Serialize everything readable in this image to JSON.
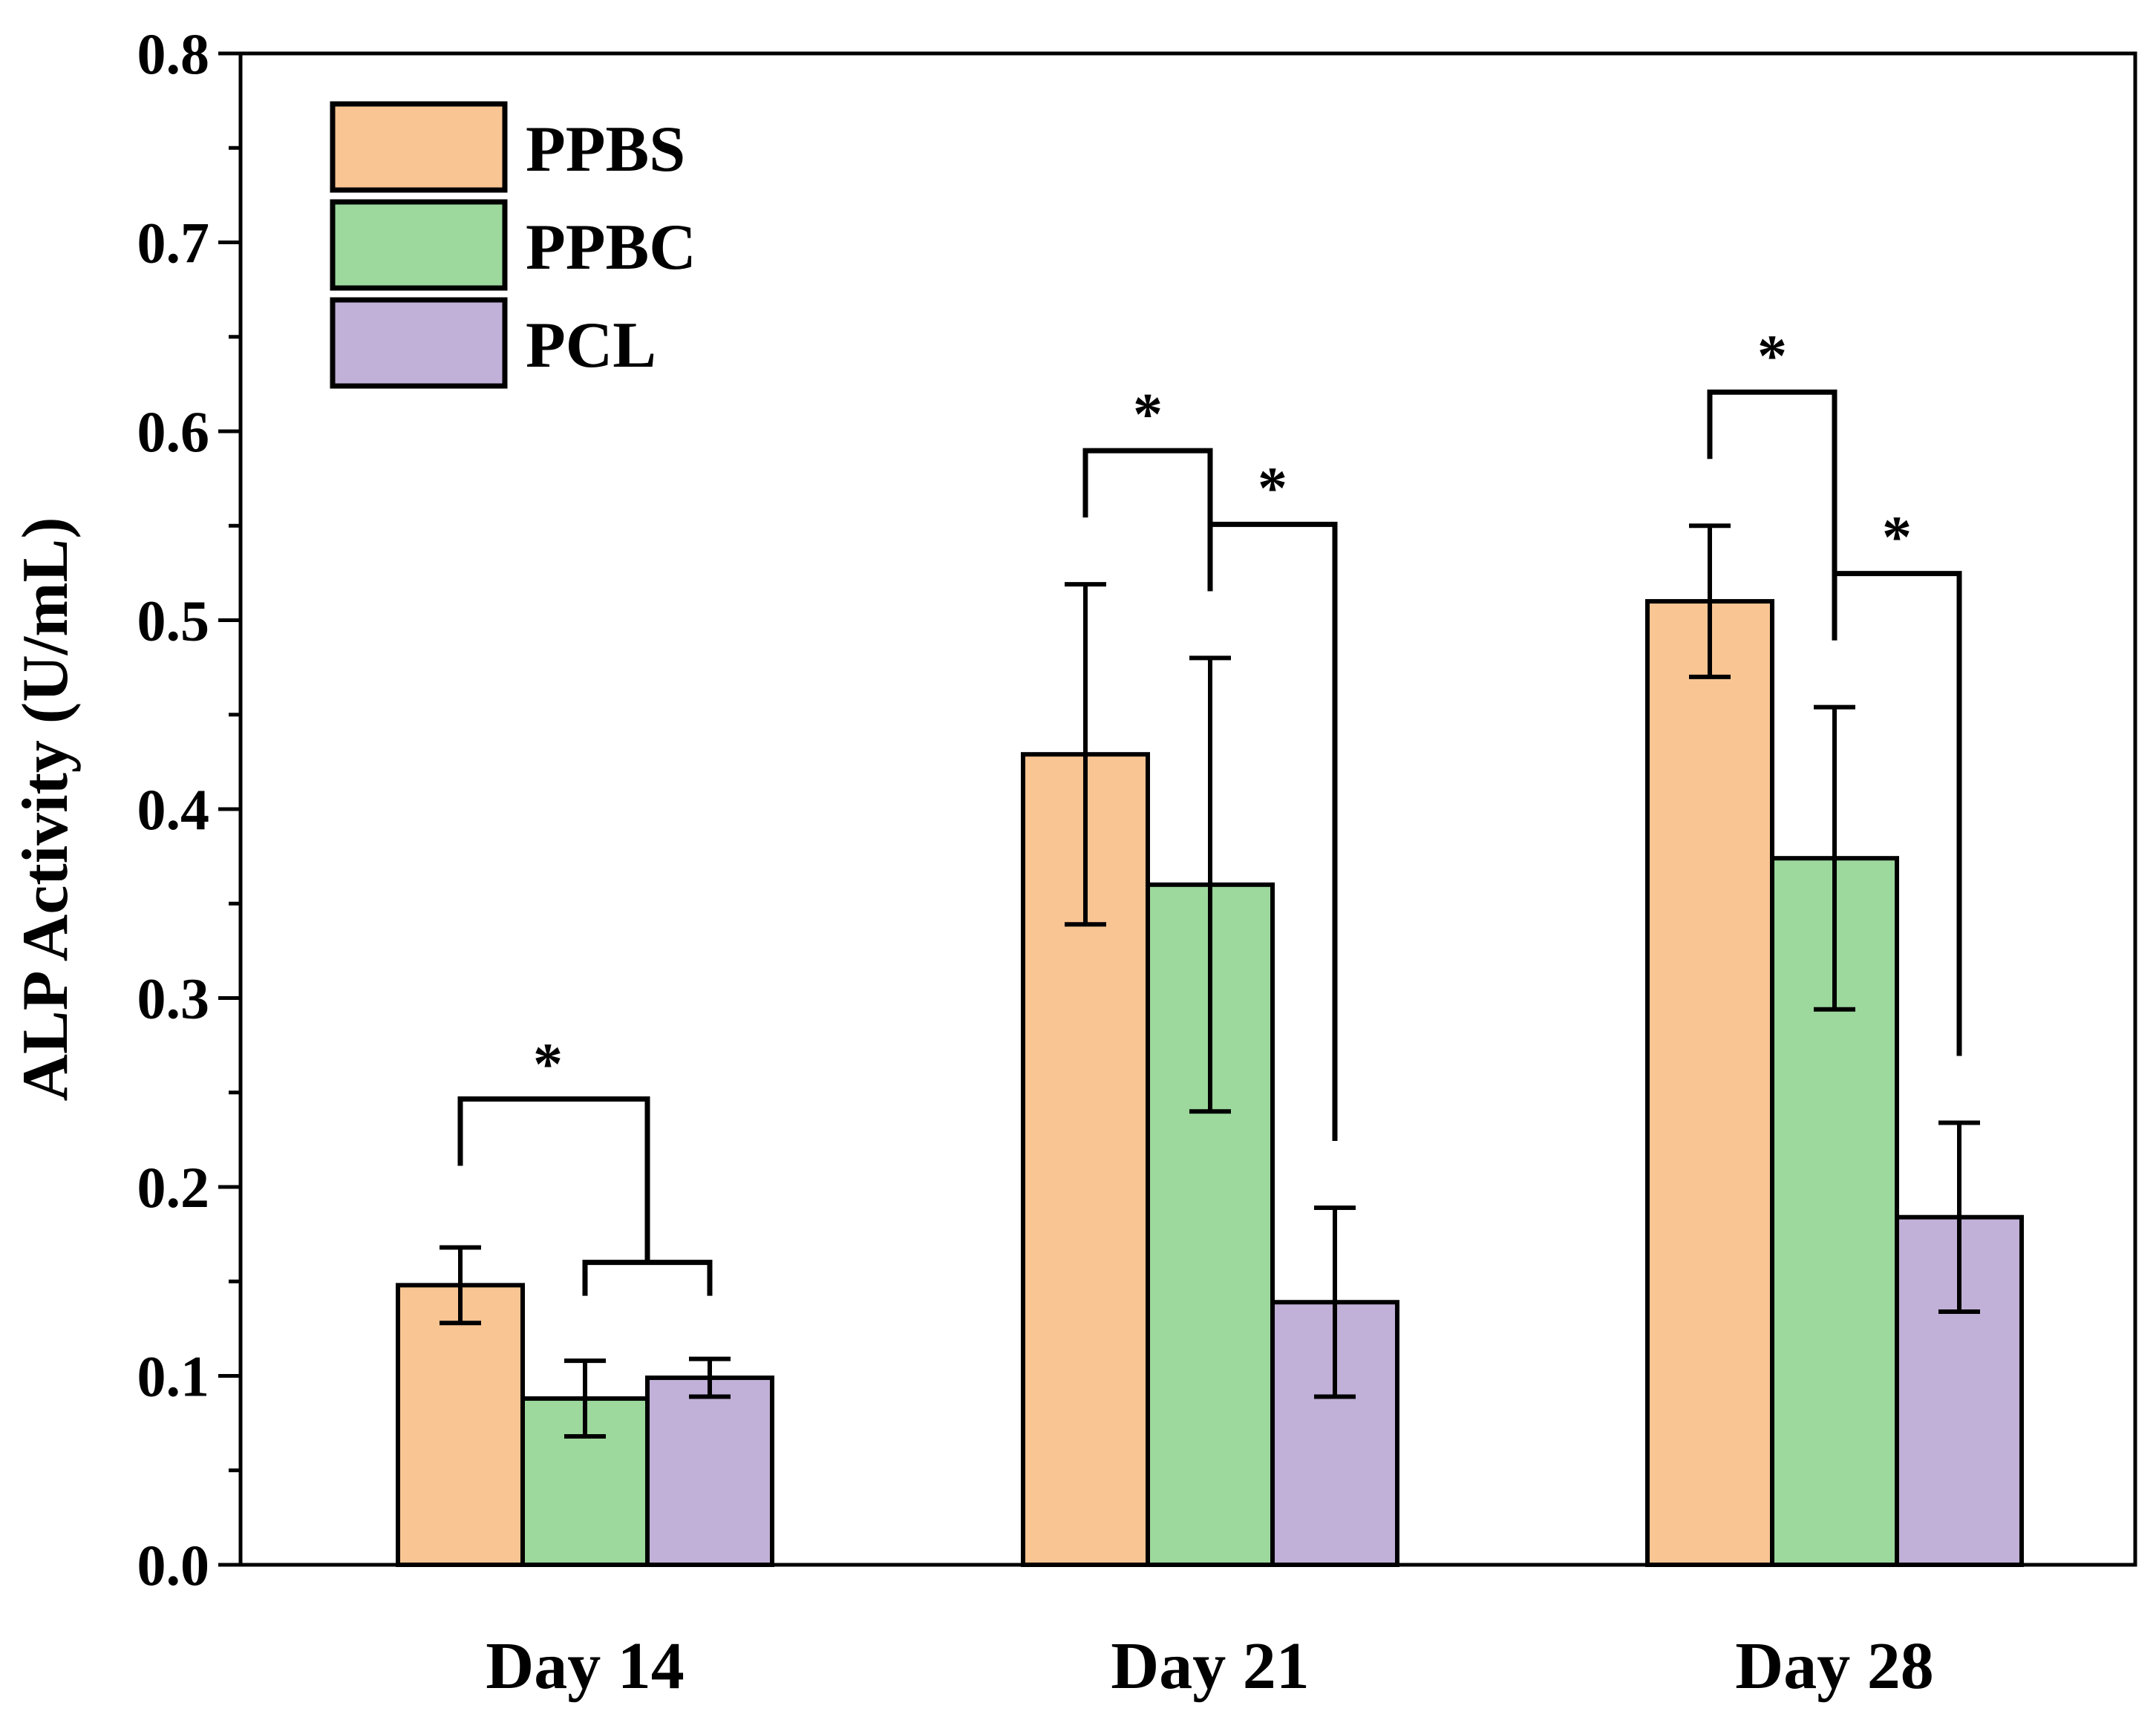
{
  "chart_data": {
    "type": "bar",
    "title": "",
    "xlabel": "",
    "ylabel": "ALP Activity (U/mL)",
    "ylim": [
      0,
      0.8
    ],
    "yticks": [
      "0.0",
      "0.1",
      "0.2",
      "0.3",
      "0.4",
      "0.5",
      "0.6",
      "0.7",
      "0.8"
    ],
    "ytick_values": [
      0,
      0.1,
      0.2,
      0.3,
      0.4,
      0.5,
      0.6,
      0.7,
      0.8
    ],
    "categories": [
      "Day 14",
      "Day 21",
      "Day 28"
    ],
    "legend_position": "top-left",
    "grid": false,
    "series": [
      {
        "name": "PPBS",
        "color": "#F9C593",
        "values": [
          0.148,
          0.429,
          0.51
        ],
        "errors": [
          0.02,
          0.09,
          0.04
        ]
      },
      {
        "name": "PPBC",
        "color": "#9DD89D",
        "values": [
          0.088,
          0.36,
          0.374
        ],
        "errors": [
          0.02,
          0.12,
          0.08
        ]
      },
      {
        "name": "PCL",
        "color": "#C1B0D7",
        "values": [
          0.099,
          0.139,
          0.184
        ],
        "errors": [
          0.01,
          0.05,
          0.05
        ]
      }
    ],
    "significance": [
      {
        "category": 0,
        "left": "PPBS",
        "right": [
          "PPBC",
          "PCL"
        ],
        "label": "*"
      },
      {
        "category": 1,
        "left": "PPBS",
        "right": [
          "PPBC"
        ],
        "label": "*"
      },
      {
        "category": 1,
        "left": "PPBC",
        "right": [
          "PCL"
        ],
        "label": "*"
      },
      {
        "category": 2,
        "left": "PPBS",
        "right": [
          "PPBC"
        ],
        "label": "*"
      },
      {
        "category": 2,
        "left": "PPBC",
        "right": [
          "PCL"
        ],
        "label": "*"
      }
    ]
  }
}
